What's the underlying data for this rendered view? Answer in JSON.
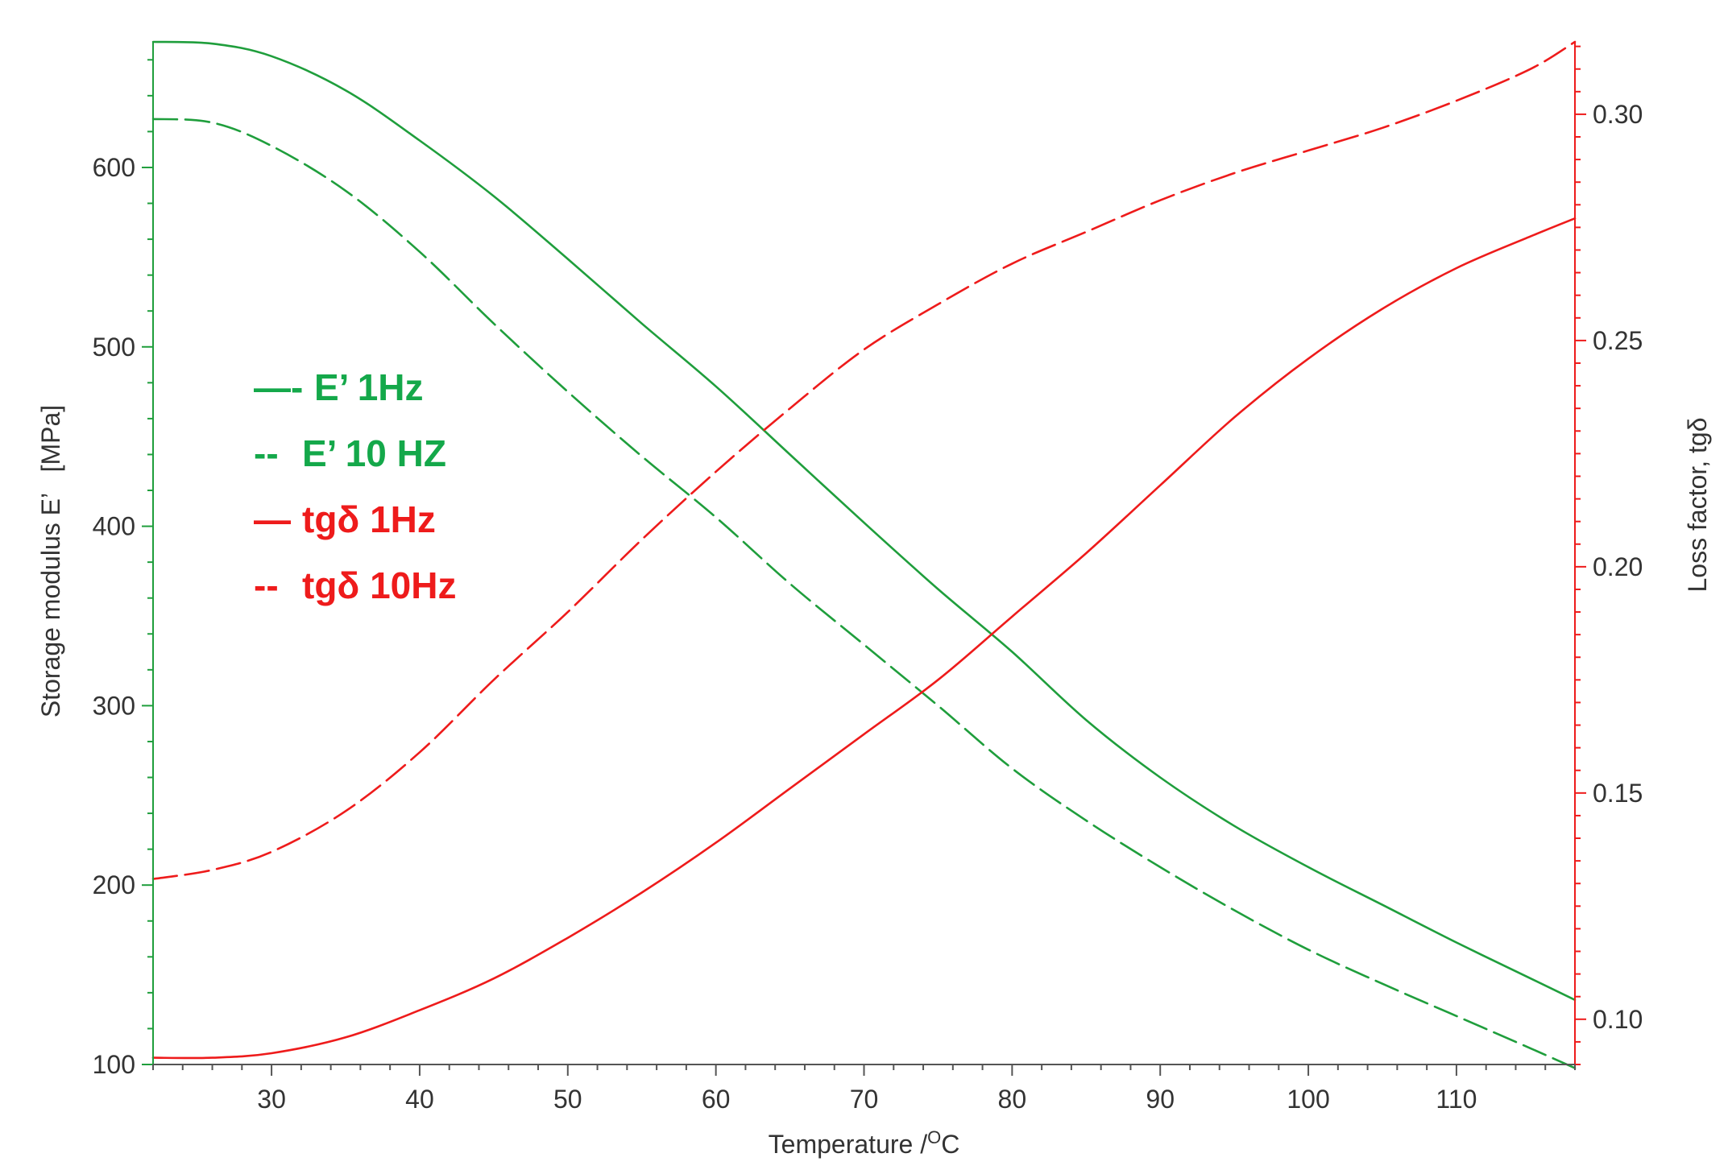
{
  "chart_data": {
    "type": "line",
    "xlabel": "Temperature /",
    "xlabel_sup": "O",
    "xlabel_unit": "C",
    "ylabel_left": "Storage modulus E’   [MPa]",
    "ylabel_right": "Loss factor, tgδ",
    "xlim": [
      22,
      118
    ],
    "ylim_left": [
      100,
      670
    ],
    "ylim_right": [
      0.09,
      0.316
    ],
    "x_ticks": [
      30,
      40,
      50,
      60,
      70,
      80,
      90,
      100,
      110
    ],
    "y_left_ticks": [
      100,
      200,
      300,
      400,
      500,
      600
    ],
    "y_right_ticks": [
      0.1,
      0.15,
      0.2,
      0.25,
      0.3
    ],
    "y_right_tick_labels": [
      "0.10",
      "0.15",
      "0.20",
      "0.25",
      "0.30"
    ],
    "grid": false,
    "legend_position": "upper-left",
    "colors": {
      "green": "#1f9e3c",
      "red": "#ee1b1b",
      "legend_green": "#14a84a",
      "legend_red": "#ee1b1b",
      "text": "#333333"
    },
    "legend": [
      {
        "marker": "—-",
        "label": "E’ 1Hz",
        "color_key": "legend_green"
      },
      {
        "marker": "--",
        "label": "E’ 10 HZ",
        "color_key": "legend_green"
      },
      {
        "marker": "—",
        "label": "tgδ 1Hz",
        "color_key": "legend_red"
      },
      {
        "marker": "--",
        "label": "tgδ 10Hz",
        "color_key": "legend_red"
      }
    ],
    "series": [
      {
        "axis": "left",
        "color_key": "green",
        "dash": false,
        "x": [
          22,
          26,
          30,
          35,
          40,
          45,
          50,
          55,
          60,
          65,
          70,
          75,
          80,
          85,
          90,
          95,
          100,
          105,
          110,
          115,
          118
        ],
        "y": [
          670,
          669,
          662,
          643,
          615,
          584,
          549,
          513,
          478,
          440,
          402,
          365,
          330,
          292,
          260,
          233,
          210,
          189,
          168,
          148,
          136
        ]
      },
      {
        "axis": "left",
        "color_key": "green",
        "dash": true,
        "x": [
          22,
          26,
          30,
          35,
          40,
          45,
          50,
          55,
          60,
          65,
          70,
          75,
          80,
          85,
          90,
          95,
          100,
          105,
          110,
          115,
          118
        ],
        "y": [
          627,
          625,
          612,
          587,
          553,
          513,
          475,
          439,
          405,
          368,
          334,
          300,
          265,
          236,
          210,
          186,
          164,
          145,
          127,
          109,
          98
        ]
      },
      {
        "axis": "right",
        "color_key": "red",
        "dash": false,
        "x": [
          22,
          26,
          30,
          35,
          40,
          45,
          50,
          55,
          60,
          65,
          70,
          75,
          80,
          85,
          90,
          95,
          100,
          105,
          110,
          115,
          118
        ],
        "y": [
          0.0915,
          0.0915,
          0.0925,
          0.096,
          0.102,
          0.109,
          0.118,
          0.128,
          0.139,
          0.151,
          0.163,
          0.175,
          0.189,
          0.203,
          0.218,
          0.233,
          0.246,
          0.257,
          0.266,
          0.273,
          0.277
        ]
      },
      {
        "axis": "right",
        "color_key": "red",
        "dash": true,
        "x": [
          22,
          26,
          30,
          35,
          40,
          45,
          50,
          55,
          60,
          65,
          70,
          75,
          80,
          85,
          90,
          95,
          100,
          105,
          110,
          115,
          118
        ],
        "y": [
          0.131,
          0.133,
          0.137,
          0.146,
          0.159,
          0.175,
          0.19,
          0.206,
          0.221,
          0.235,
          0.248,
          0.258,
          0.267,
          0.274,
          0.281,
          0.287,
          0.292,
          0.297,
          0.303,
          0.31,
          0.316
        ]
      }
    ]
  }
}
